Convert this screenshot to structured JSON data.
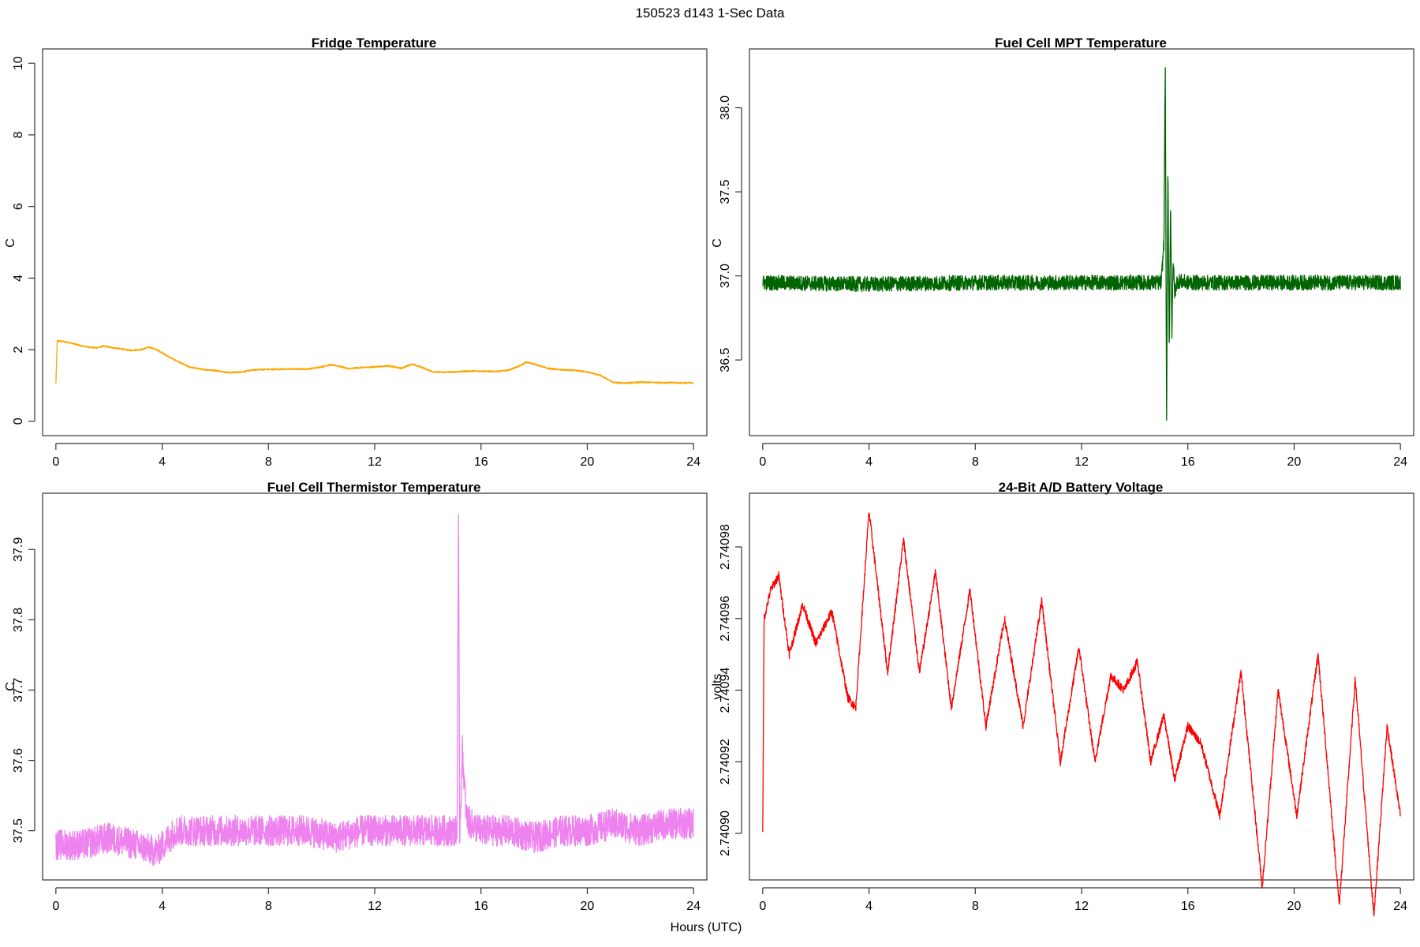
{
  "figure": {
    "title": "150523   d143   1-Sec Data",
    "shared_xlabel": "Hours (UTC)"
  },
  "chart_data": [
    {
      "type": "line",
      "title": "Fridge Temperature",
      "xlabel": "",
      "ylabel": "C",
      "color": "#FFA500",
      "xlim": [
        -0.5,
        24.5
      ],
      "ylim": [
        -0.4,
        10.4
      ],
      "xticks": [
        0,
        4,
        8,
        12,
        16,
        20,
        24
      ],
      "yticks": [
        0,
        2,
        4,
        6,
        8,
        10
      ],
      "ytick_labels": [
        "0",
        "2",
        "4",
        "6",
        "8",
        "10"
      ],
      "noise": 0.02,
      "series": [
        {
          "name": "Fridge Temperature",
          "x": [
            0,
            0.05,
            0.5,
            1,
            1.5,
            1.8,
            2.2,
            2.8,
            3.2,
            3.5,
            3.8,
            4.3,
            5,
            5.5,
            6,
            6.5,
            7,
            7.5,
            8,
            9,
            9.5,
            10,
            10.3,
            10.6,
            11,
            11.5,
            12,
            12.5,
            13,
            13.4,
            13.8,
            14.2,
            14.6,
            15,
            15.5,
            16,
            16.5,
            17,
            17.5,
            17.7,
            18,
            18.5,
            19,
            19.5,
            20,
            20.5,
            21,
            21.5,
            22,
            23,
            24
          ],
          "values": [
            1.05,
            2.25,
            2.2,
            2.1,
            2.05,
            2.1,
            2.05,
            1.98,
            2.0,
            2.07,
            2.0,
            1.78,
            1.52,
            1.45,
            1.42,
            1.36,
            1.38,
            1.44,
            1.45,
            1.46,
            1.46,
            1.52,
            1.58,
            1.55,
            1.47,
            1.5,
            1.52,
            1.55,
            1.48,
            1.6,
            1.5,
            1.38,
            1.37,
            1.38,
            1.4,
            1.4,
            1.39,
            1.42,
            1.56,
            1.65,
            1.6,
            1.48,
            1.44,
            1.42,
            1.38,
            1.28,
            1.08,
            1.07,
            1.09,
            1.08,
            1.07
          ]
        }
      ]
    },
    {
      "type": "line",
      "title": "Fuel Cell MPT Temperature",
      "xlabel": "",
      "ylabel": "C",
      "color": "#006400",
      "xlim": [
        -0.5,
        24.5
      ],
      "ylim": [
        36.05,
        38.35
      ],
      "xticks": [
        0,
        4,
        8,
        12,
        16,
        20,
        24
      ],
      "yticks": [
        36.5,
        37.0,
        37.5,
        38.0
      ],
      "ytick_labels": [
        "36.5",
        "37.0",
        "37.5",
        "38.0"
      ],
      "noise": 0.045,
      "series": [
        {
          "name": "Fuel Cell MPT Temperature",
          "x": [
            0,
            4,
            8,
            12,
            15.0,
            15.1,
            15.15,
            15.2,
            15.25,
            15.3,
            15.35,
            15.4,
            15.45,
            15.5,
            15.6,
            16,
            20,
            23,
            24
          ],
          "values": [
            36.96,
            36.95,
            36.96,
            36.96,
            36.96,
            37.2,
            38.28,
            36.12,
            37.65,
            36.55,
            37.45,
            36.65,
            37.1,
            36.9,
            36.97,
            36.96,
            36.96,
            36.96,
            36.96
          ]
        }
      ]
    },
    {
      "type": "line",
      "title": "Fuel Cell Thermistor Temperature",
      "xlabel": "",
      "ylabel": "C",
      "color": "#EE82EE",
      "xlim": [
        -0.5,
        24.5
      ],
      "ylim": [
        37.43,
        37.98
      ],
      "xticks": [
        0,
        4,
        8,
        12,
        16,
        20,
        24
      ],
      "yticks": [
        37.5,
        37.6,
        37.7,
        37.8,
        37.9
      ],
      "ytick_labels": [
        "37.5",
        "37.6",
        "37.7",
        "37.8",
        "37.9"
      ],
      "noise": 0.022,
      "series": [
        {
          "name": "Fuel Cell Thermistor Temperature",
          "x": [
            0,
            1,
            2,
            3,
            3.8,
            4.5,
            5.5,
            6.5,
            7.5,
            8.5,
            9.5,
            10.5,
            11.5,
            12.5,
            13.5,
            14.5,
            15.1,
            15.15,
            15.2,
            15.25,
            15.3,
            15.35,
            15.45,
            15.6,
            16,
            17,
            18,
            19,
            20,
            21,
            22,
            23,
            24
          ],
          "values": [
            37.48,
            37.48,
            37.49,
            37.48,
            37.47,
            37.5,
            37.5,
            37.5,
            37.5,
            37.5,
            37.5,
            37.49,
            37.5,
            37.5,
            37.5,
            37.5,
            37.5,
            37.95,
            37.5,
            37.55,
            37.62,
            37.58,
            37.52,
            37.51,
            37.5,
            37.5,
            37.49,
            37.5,
            37.5,
            37.51,
            37.5,
            37.51,
            37.51
          ]
        }
      ]
    },
    {
      "type": "line",
      "title": "24-Bit A/D Battery Voltage",
      "xlabel": "",
      "ylabel": "volts",
      "color": "#FF0000",
      "xlim": [
        -0.5,
        24.5
      ],
      "ylim": [
        2.740887,
        2.740995
      ],
      "xticks": [
        0,
        4,
        8,
        12,
        16,
        20,
        24
      ],
      "yticks": [
        2.7409,
        2.74092,
        2.74094,
        2.74096,
        2.74098
      ],
      "ytick_labels": [
        "2.74090",
        "2.74092",
        "2.74094",
        "2.74096",
        "2.74098"
      ],
      "noise": 1.2e-06,
      "series": [
        {
          "name": "24-Bit A/D Battery Voltage",
          "x": [
            0,
            0.05,
            0.3,
            0.6,
            1.0,
            1.5,
            2.0,
            2.6,
            3.2,
            3.5,
            4.0,
            4.7,
            5.3,
            5.9,
            6.5,
            7.1,
            7.8,
            8.4,
            9.1,
            9.8,
            10.5,
            11.2,
            11.9,
            12.5,
            13.1,
            13.6,
            14.1,
            14.6,
            15.1,
            15.5,
            16.0,
            16.5,
            17.2,
            18.0,
            18.8,
            19.4,
            20.1,
            20.9,
            21.7,
            22.3,
            23.0,
            23.5,
            24
          ],
          "values": [
            2.7409,
            2.74096,
            2.740968,
            2.740972,
            2.74095,
            2.740964,
            2.740953,
            2.740962,
            2.740938,
            2.740935,
            2.74099,
            2.740945,
            2.740982,
            2.740945,
            2.740973,
            2.740935,
            2.740968,
            2.74093,
            2.74096,
            2.74093,
            2.740965,
            2.74092,
            2.740952,
            2.74092,
            2.740944,
            2.74094,
            2.740948,
            2.74092,
            2.740933,
            2.740915,
            2.74093,
            2.740925,
            2.740905,
            2.740945,
            2.740885,
            2.74094,
            2.740905,
            2.74095,
            2.74088,
            2.740943,
            2.740877,
            2.74093,
            2.740905
          ]
        }
      ]
    }
  ]
}
